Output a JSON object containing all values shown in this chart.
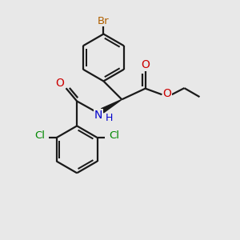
{
  "background_color": "#e8e8e8",
  "bond_color": "#1a1a1a",
  "br_color": "#b06000",
  "o_color": "#cc0000",
  "n_color": "#0000cc",
  "cl_color": "#008800",
  "bond_width": 1.6,
  "fig_size": [
    3.0,
    3.0
  ],
  "dpi": 100,
  "xlim": [
    0,
    10
  ],
  "ylim": [
    0,
    10
  ]
}
